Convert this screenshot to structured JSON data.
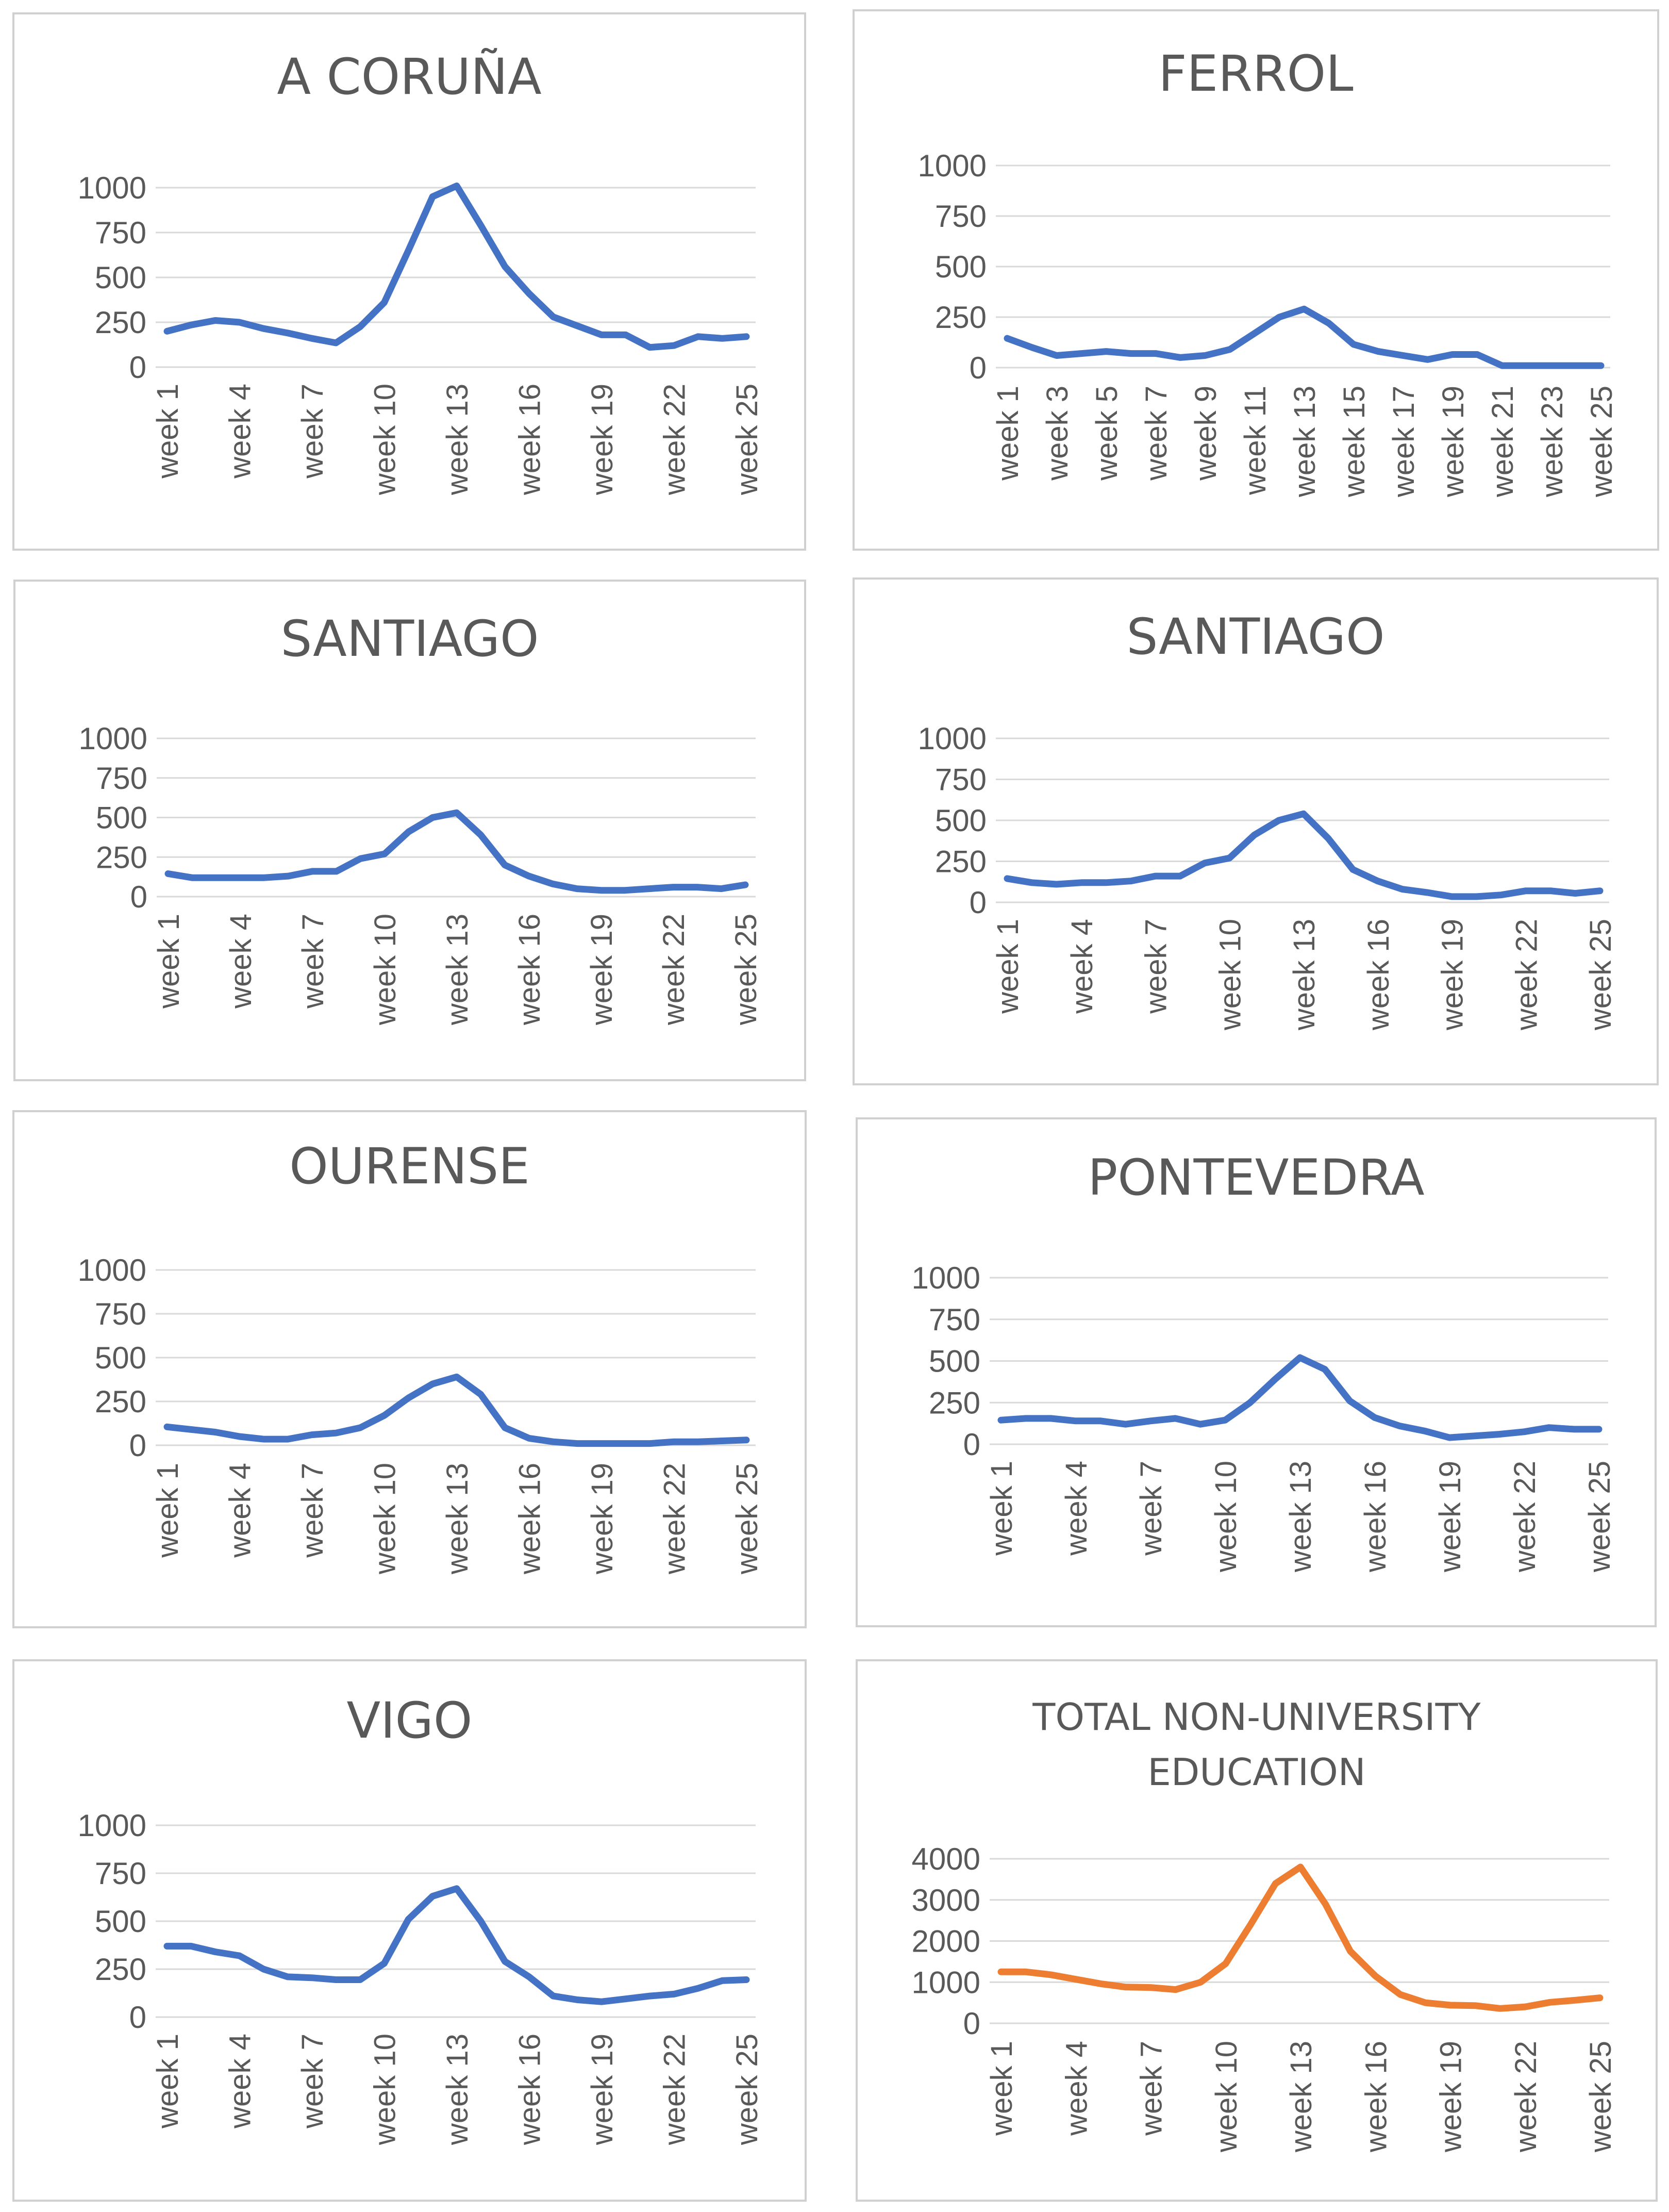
{
  "chart_data": [
    {
      "type": "line",
      "title_lines": [
        "A CORUÑA"
      ],
      "color": "#4472C4",
      "x_tick_labels": [
        "week 1",
        "week 4",
        "week 7",
        "week 10",
        "week 13",
        "week 16",
        "week 19",
        "week 22",
        "week 25"
      ],
      "y_tick_labels": [
        "0",
        "250",
        "500",
        "750",
        "1000"
      ],
      "ylim": [
        0,
        1000
      ],
      "series": [
        {
          "name": "A CORUÑA",
          "values": [
            200,
            235,
            260,
            250,
            215,
            190,
            160,
            135,
            225,
            360,
            650,
            950,
            1010,
            790,
            560,
            410,
            280,
            230,
            180,
            180,
            110,
            120,
            170,
            160,
            170
          ]
        }
      ]
    },
    {
      "type": "line",
      "title_lines": [
        "FERROL"
      ],
      "color": "#4472C4",
      "x_tick_labels": [
        "week 1",
        "week 3",
        "week 5",
        "week 7",
        "week 9",
        "week 11",
        "week 13",
        "week 15",
        "week 17",
        "week 19",
        "week 21",
        "week 23",
        "week 25"
      ],
      "y_tick_labels": [
        "0",
        "250",
        "500",
        "750",
        "1000"
      ],
      "ylim": [
        0,
        1000
      ],
      "series": [
        {
          "name": "FERROL",
          "values": [
            145,
            100,
            60,
            70,
            80,
            70,
            70,
            50,
            60,
            90,
            170,
            250,
            290,
            220,
            115,
            80,
            60,
            40,
            65,
            65,
            10,
            10,
            10,
            10,
            10
          ]
        }
      ]
    },
    {
      "type": "line",
      "title_lines": [
        "SANTIAGO"
      ],
      "color": "#4472C4",
      "x_tick_labels": [
        "week 1",
        "week 4",
        "week 7",
        "week 10",
        "week 13",
        "week 16",
        "week 19",
        "week 22",
        "week 25"
      ],
      "y_tick_labels": [
        "0",
        "250",
        "500",
        "750",
        "1000"
      ],
      "ylim": [
        0,
        1000
      ],
      "series": [
        {
          "name": "SANTIAGO",
          "values": [
            145,
            120,
            120,
            120,
            120,
            130,
            160,
            160,
            240,
            270,
            410,
            500,
            530,
            390,
            200,
            130,
            80,
            50,
            40,
            40,
            50,
            60,
            60,
            50,
            75
          ]
        }
      ]
    },
    {
      "type": "line",
      "title_lines": [
        "SANTIAGO"
      ],
      "color": "#4472C4",
      "x_tick_labels": [
        "week 1",
        "week 4",
        "week 7",
        "week 10",
        "week 13",
        "week 16",
        "week 19",
        "week 22",
        "week 25"
      ],
      "y_tick_labels": [
        "0",
        "250",
        "500",
        "750",
        "1000"
      ],
      "ylim": [
        0,
        1000
      ],
      "series": [
        {
          "name": "SANTIAGO",
          "values": [
            145,
            120,
            110,
            120,
            120,
            130,
            160,
            160,
            240,
            270,
            410,
            500,
            540,
            390,
            200,
            130,
            80,
            60,
            35,
            35,
            45,
            70,
            70,
            55,
            70
          ]
        }
      ]
    },
    {
      "type": "line",
      "title_lines": [
        "OURENSE"
      ],
      "color": "#4472C4",
      "x_tick_labels": [
        "week 1",
        "week 4",
        "week 7",
        "week 10",
        "week 13",
        "week 16",
        "week 19",
        "week 22",
        "week 25"
      ],
      "y_tick_labels": [
        "0",
        "250",
        "500",
        "750",
        "1000"
      ],
      "ylim": [
        0,
        1000
      ],
      "series": [
        {
          "name": "OURENSE",
          "values": [
            105,
            90,
            75,
            50,
            35,
            35,
            60,
            70,
            100,
            170,
            270,
            350,
            390,
            290,
            100,
            40,
            20,
            10,
            10,
            10,
            10,
            20,
            20,
            25,
            30
          ]
        }
      ]
    },
    {
      "type": "line",
      "title_lines": [
        "PONTEVEDRA"
      ],
      "color": "#4472C4",
      "x_tick_labels": [
        "week 1",
        "week 4",
        "week 7",
        "week 10",
        "week 13",
        "week 16",
        "week 19",
        "week 22",
        "week 25"
      ],
      "y_tick_labels": [
        "0",
        "250",
        "500",
        "750",
        "1000"
      ],
      "ylim": [
        0,
        1000
      ],
      "series": [
        {
          "name": "PONTEVEDRA",
          "values": [
            145,
            155,
            155,
            140,
            140,
            120,
            140,
            155,
            120,
            145,
            250,
            390,
            520,
            450,
            260,
            160,
            110,
            80,
            40,
            50,
            60,
            75,
            100,
            90,
            90
          ]
        }
      ]
    },
    {
      "type": "line",
      "title_lines": [
        "VIGO"
      ],
      "color": "#4472C4",
      "x_tick_labels": [
        "week 1",
        "week 4",
        "week 7",
        "week 10",
        "week 13",
        "week 16",
        "week 19",
        "week 22",
        "week 25"
      ],
      "y_tick_labels": [
        "0",
        "250",
        "500",
        "750",
        "1000"
      ],
      "ylim": [
        0,
        1000
      ],
      "series": [
        {
          "name": "VIGO",
          "values": [
            370,
            370,
            340,
            320,
            250,
            210,
            205,
            195,
            195,
            280,
            510,
            630,
            670,
            500,
            290,
            210,
            110,
            90,
            80,
            95,
            110,
            120,
            150,
            190,
            195
          ]
        }
      ]
    },
    {
      "type": "line",
      "title_lines": [
        "TOTAL NON-UNIVERSITY",
        "EDUCATION"
      ],
      "color": "#ED7D31",
      "x_tick_labels": [
        "week 1",
        "week 4",
        "week 7",
        "week 10",
        "week 13",
        "week 16",
        "week 19",
        "week 22",
        "week 25"
      ],
      "y_tick_labels": [
        "0",
        "1000",
        "2000",
        "3000",
        "4000"
      ],
      "ylim": [
        0,
        4000
      ],
      "series": [
        {
          "name": "TOTAL NON-UNIVERSITY EDUCATION",
          "values": [
            1250,
            1250,
            1180,
            1070,
            960,
            880,
            870,
            820,
            1000,
            1450,
            2400,
            3400,
            3800,
            2900,
            1750,
            1150,
            700,
            500,
            440,
            430,
            360,
            400,
            510,
            560,
            620
          ]
        }
      ]
    }
  ]
}
